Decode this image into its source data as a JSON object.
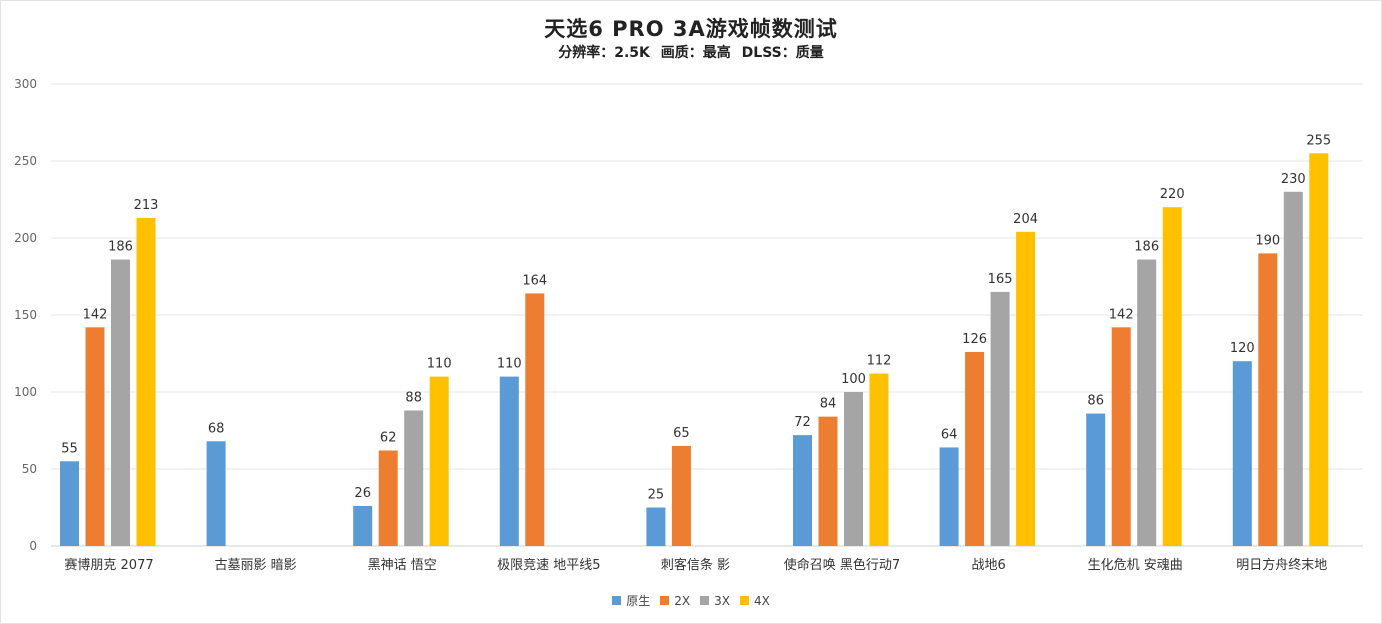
{
  "chart_data": {
    "type": "bar",
    "title": "天选6 PRO 3A游戏帧数测试",
    "subtitle": "分辨率：2.5K  画质：最高  DLSS：质量",
    "xlabel": "",
    "ylabel": "",
    "ylim": [
      0,
      300
    ],
    "yticks": [
      0,
      50,
      100,
      150,
      200,
      250,
      300
    ],
    "grid": true,
    "legend_position": "bottom-center",
    "categories": [
      "赛博朋克 2077",
      "古墓丽影 暗影",
      "黑神话 悟空",
      "极限竞速 地平线5",
      "刺客信条 影",
      "使命召唤 黑色行动7",
      "战地6",
      "生化危机 安魂曲",
      "明日方舟终末地"
    ],
    "series": [
      {
        "name": "原生",
        "color": "#5b9bd5",
        "values": [
          55,
          68,
          26,
          110,
          25,
          72,
          64,
          86,
          120
        ]
      },
      {
        "name": "2X",
        "color": "#ed7d31",
        "values": [
          142,
          null,
          62,
          164,
          65,
          84,
          126,
          142,
          190
        ]
      },
      {
        "name": "3X",
        "color": "#a5a5a5",
        "values": [
          186,
          null,
          88,
          null,
          null,
          100,
          165,
          186,
          230
        ]
      },
      {
        "name": "4X",
        "color": "#ffc000",
        "values": [
          213,
          null,
          110,
          null,
          null,
          112,
          204,
          220,
          255
        ]
      }
    ]
  }
}
